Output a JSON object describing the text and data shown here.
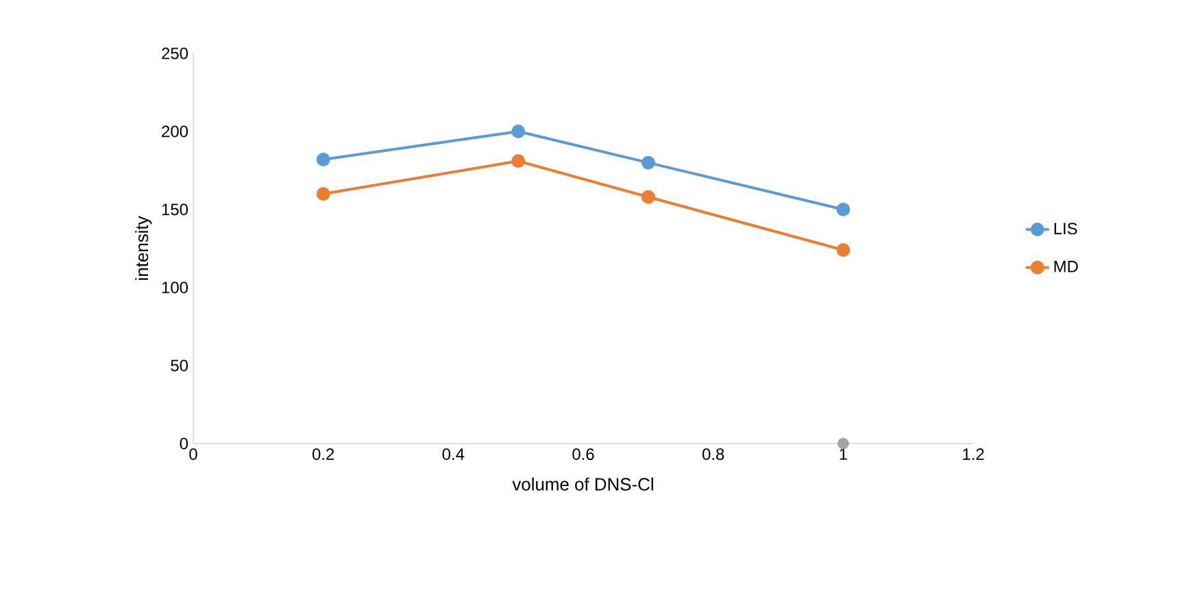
{
  "chart_data": {
    "type": "line",
    "xlabel": "volume of DNS-Cl",
    "ylabel": "intensity",
    "x": [
      0.2,
      0.5,
      0.7,
      1
    ],
    "series": [
      {
        "name": "LIS",
        "color": "#5b9bd5",
        "values": [
          182,
          200,
          180,
          150
        ]
      },
      {
        "name": "MD",
        "color": "#ed7d31",
        "values": [
          160,
          181,
          158,
          124
        ]
      },
      {
        "type": "scatter",
        "color": "#a5a5a5",
        "x": [
          1
        ],
        "values": [
          0
        ]
      }
    ],
    "xlim": [
      0,
      1.2
    ],
    "xticks": [
      0,
      0.2,
      0.4,
      0.6,
      0.8,
      1,
      1.2
    ],
    "ylim": [
      0,
      250
    ],
    "yticks": [
      0,
      50,
      100,
      150,
      200,
      250
    ],
    "grid": false,
    "legend": "right",
    "marker": "circle",
    "line_style": "solid"
  }
}
